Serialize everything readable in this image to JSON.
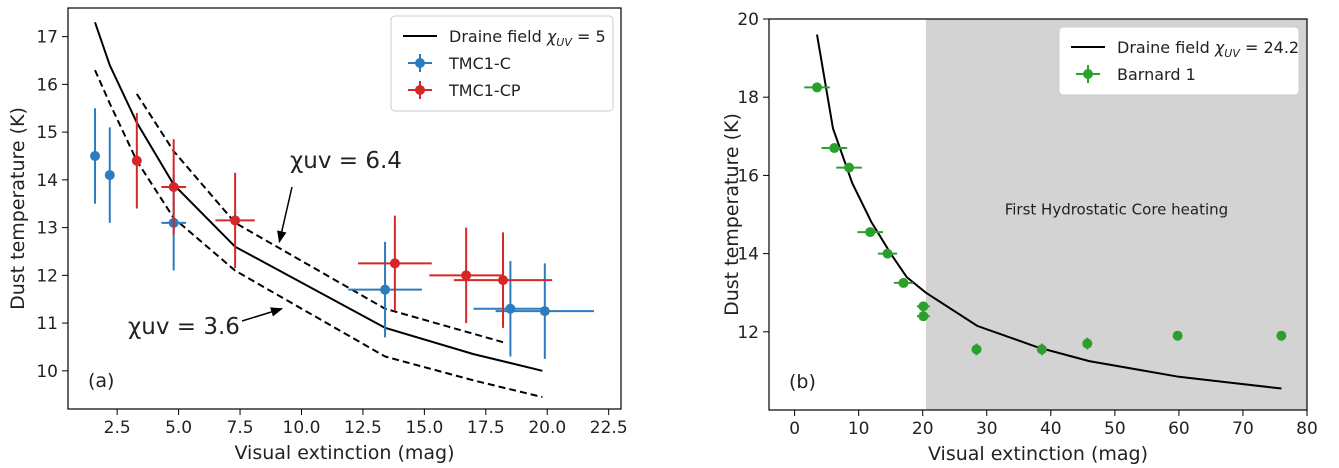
{
  "chart_data": [
    {
      "type": "scatter",
      "panel_label": "(a)",
      "xlabel": "Visual extinction (mag)",
      "ylabel": "Dust temperature (K)",
      "xlim": [
        0.5,
        23.0
      ],
      "ylim": [
        9.2,
        17.6
      ],
      "xticks": [
        2.5,
        5.0,
        7.5,
        10.0,
        12.5,
        15.0,
        17.5,
        20.0,
        22.5
      ],
      "xtick_labels": [
        "2.5",
        "5.0",
        "7.5",
        "10.0",
        "12.5",
        "15.0",
        "17.5",
        "20.0",
        "22.5"
      ],
      "yticks": [
        10,
        11,
        12,
        13,
        14,
        15,
        16,
        17
      ],
      "ytick_labels": [
        "10",
        "11",
        "12",
        "13",
        "14",
        "15",
        "16",
        "17"
      ],
      "legend_position": "top-right",
      "series": [
        {
          "name": "Draine field χUV = 5",
          "legend_label_text": "Draine field ",
          "legend_label_math": "χ",
          "legend_label_sub": "UV",
          "legend_label_tail": " = 5",
          "kind": "line",
          "style": "solid",
          "color": "#000000",
          "x": [
            1.6,
            2.2,
            3.3,
            4.8,
            7.3,
            13.4,
            17.0,
            19.8
          ],
          "y": [
            17.3,
            16.4,
            15.2,
            13.9,
            12.6,
            10.9,
            10.35,
            10.0
          ]
        },
        {
          "name": "χuv = 6.4",
          "kind": "line",
          "style": "dashed",
          "color": "#000000",
          "x": [
            3.3,
            4.8,
            7.3,
            13.4,
            18.2
          ],
          "y": [
            15.8,
            14.6,
            13.1,
            11.3,
            10.6
          ]
        },
        {
          "name": "χuv = 3.6",
          "kind": "line",
          "style": "dashed",
          "color": "#000000",
          "x": [
            1.6,
            2.2,
            3.3,
            4.8,
            7.3,
            13.4,
            17.0,
            19.8
          ],
          "y": [
            16.3,
            15.6,
            14.4,
            13.2,
            12.1,
            10.3,
            9.8,
            9.45
          ]
        },
        {
          "name": "TMC1-C",
          "kind": "errorbar",
          "color": "#2e7bbd",
          "points": [
            {
              "x": 1.6,
              "y": 14.5,
              "xerr": 0,
              "yerr": 1.0
            },
            {
              "x": 2.2,
              "y": 14.1,
              "xerr": 0,
              "yerr": 1.0
            },
            {
              "x": 4.8,
              "y": 13.1,
              "xerr": 0.5,
              "yerr": 1.0
            },
            {
              "x": 13.4,
              "y": 11.7,
              "xerr": 1.5,
              "yerr": 1.0
            },
            {
              "x": 18.5,
              "y": 11.3,
              "xerr": 1.5,
              "yerr": 1.0
            },
            {
              "x": 19.9,
              "y": 11.25,
              "xerr": 2.0,
              "yerr": 1.0
            }
          ]
        },
        {
          "name": "TMC1-CP",
          "kind": "errorbar",
          "color": "#d62728",
          "points": [
            {
              "x": 3.3,
              "y": 14.4,
              "xerr": 0,
              "yerr": 1.0
            },
            {
              "x": 4.8,
              "y": 13.85,
              "xerr": 0.5,
              "yerr": 1.0
            },
            {
              "x": 7.3,
              "y": 13.15,
              "xerr": 0.8,
              "yerr": 1.0
            },
            {
              "x": 13.8,
              "y": 12.25,
              "xerr": 1.5,
              "yerr": 1.0
            },
            {
              "x": 16.7,
              "y": 12.0,
              "xerr": 1.5,
              "yerr": 1.0
            },
            {
              "x": 18.2,
              "y": 11.9,
              "xerr": 2.0,
              "yerr": 1.0
            }
          ]
        }
      ],
      "annotations": [
        {
          "text": "χuv = 6.4",
          "arrow_to": [
            9.1,
            12.7
          ]
        },
        {
          "text": "χuv = 3.6",
          "arrow_to": [
            9.2,
            11.3
          ]
        }
      ]
    },
    {
      "type": "scatter",
      "panel_label": "(b)",
      "xlabel": "Visual extinction (mag)",
      "ylabel": "Dust temperature (K)",
      "xlim": [
        -4,
        80
      ],
      "ylim": [
        10.0,
        20.0
      ],
      "xticks": [
        0,
        10,
        20,
        30,
        40,
        50,
        60,
        70,
        80
      ],
      "xtick_labels": [
        "0",
        "10",
        "20",
        "30",
        "40",
        "50",
        "60",
        "70",
        "80"
      ],
      "yticks": [
        12,
        14,
        16,
        18,
        20
      ],
      "ytick_labels": [
        "12",
        "14",
        "16",
        "18",
        "20"
      ],
      "legend_position": "top-right",
      "shaded_region": {
        "x_from": 20.5,
        "x_to": 80,
        "color": "#d3d3d3",
        "label": "First Hydrostatic Core heating"
      },
      "series": [
        {
          "name": "Draine field χUV = 24.2",
          "legend_label_text": "Draine field ",
          "legend_label_math": "χ",
          "legend_label_sub": "UV",
          "legend_label_tail": " = 24.2",
          "kind": "line",
          "style": "solid",
          "color": "#000000",
          "x": [
            3.5,
            6.0,
            9.0,
            12.0,
            15.0,
            17.5,
            20.5,
            28.5,
            38.0,
            46.0,
            60.0,
            76.0
          ],
          "y": [
            19.6,
            17.2,
            15.8,
            14.8,
            14.0,
            13.4,
            13.0,
            12.15,
            11.6,
            11.25,
            10.85,
            10.55
          ]
        },
        {
          "name": "Barnard 1",
          "kind": "errorbar",
          "color": "#2ca02c",
          "points": [
            {
              "x": 3.5,
              "y": 18.25,
              "xerr": 2.0,
              "yerr": 0
            },
            {
              "x": 6.2,
              "y": 16.7,
              "xerr": 2.0,
              "yerr": 0
            },
            {
              "x": 8.5,
              "y": 16.2,
              "xerr": 2.0,
              "yerr": 0
            },
            {
              "x": 11.8,
              "y": 14.55,
              "xerr": 2.0,
              "yerr": 0
            },
            {
              "x": 14.5,
              "y": 14.0,
              "xerr": 1.5,
              "yerr": 0
            },
            {
              "x": 17.0,
              "y": 13.25,
              "xerr": 1.5,
              "yerr": 0
            },
            {
              "x": 20.1,
              "y": 12.65,
              "xerr": 1.0,
              "yerr": 0
            },
            {
              "x": 20.1,
              "y": 12.4,
              "xerr": 1.0,
              "yerr": 0
            },
            {
              "x": 28.4,
              "y": 11.55,
              "xerr": 0,
              "yerr": 0.15
            },
            {
              "x": 38.6,
              "y": 11.55,
              "xerr": 0,
              "yerr": 0.15
            },
            {
              "x": 45.7,
              "y": 11.7,
              "xerr": 0,
              "yerr": 0.15
            },
            {
              "x": 59.8,
              "y": 11.9,
              "xerr": 0,
              "yerr": 0
            },
            {
              "x": 76.0,
              "y": 11.9,
              "xerr": 0,
              "yerr": 0
            }
          ]
        }
      ]
    }
  ]
}
